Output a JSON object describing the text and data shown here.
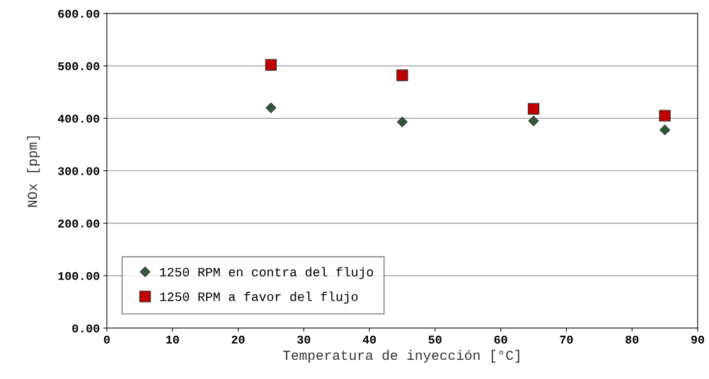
{
  "chart_data": {
    "type": "scatter",
    "xlabel": "Temperatura de inyección [°C]",
    "ylabel": "NOx [ppm]",
    "x": [
      25,
      45,
      65,
      85
    ],
    "series": [
      {
        "name": "1250 RPM en contra del flujo",
        "color": "#2f5a35",
        "marker": "diamond",
        "values": [
          420,
          393,
          395,
          378
        ]
      },
      {
        "name": "1250 RPM a favor del flujo",
        "color": "#c00000",
        "marker": "square",
        "values": [
          502,
          482,
          418,
          405
        ]
      }
    ],
    "xlim": [
      0,
      90
    ],
    "xticks": [
      0,
      10,
      20,
      30,
      40,
      50,
      60,
      70,
      80,
      90
    ],
    "ylim": [
      0,
      600
    ],
    "yticks": [
      {
        "value": 0,
        "label": "0.00"
      },
      {
        "value": 100,
        "label": "100.00"
      },
      {
        "value": 200,
        "label": "200.00"
      },
      {
        "value": 300,
        "label": "300.00"
      },
      {
        "value": 400,
        "label": "400.00"
      },
      {
        "value": 500,
        "label": "500.00"
      },
      {
        "value": 600,
        "label": "600.00"
      }
    ],
    "grid": "y",
    "legend": "bottom left"
  }
}
